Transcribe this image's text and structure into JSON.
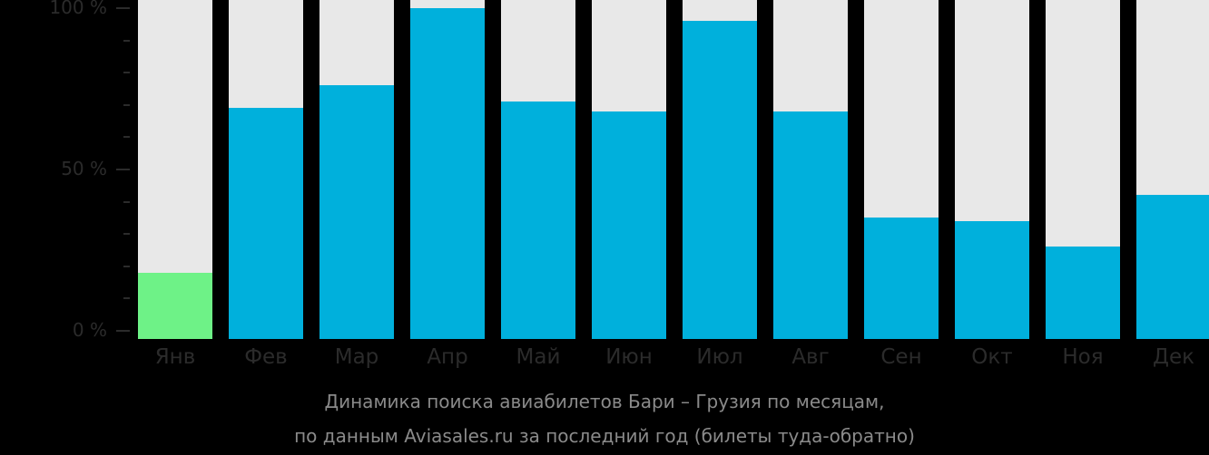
{
  "chart_data": {
    "type": "bar",
    "title": "Динамика поиска авиабилетов Бари – Грузия по месяцам,",
    "subtitle": "по данным Aviasales.ru за последний год (билеты туда-обратно)",
    "xlabel": "",
    "ylabel": "",
    "ylim": [
      0,
      100
    ],
    "y_ticks": [
      "0 %",
      "50 %",
      "100 %"
    ],
    "categories": [
      "Янв",
      "Фев",
      "Мар",
      "Апр",
      "Май",
      "Июн",
      "Июл",
      "Авг",
      "Сен",
      "Окт",
      "Ноя",
      "Дек"
    ],
    "values": [
      18,
      69,
      76,
      100,
      71,
      68,
      96,
      68,
      35,
      34,
      26,
      42
    ],
    "highlight_index": 0,
    "grid": false,
    "legend": "none"
  },
  "colors": {
    "bar": "#00b0dc",
    "highlight": "#6ef287",
    "track": "#e8e8e8",
    "background": "#000000"
  }
}
